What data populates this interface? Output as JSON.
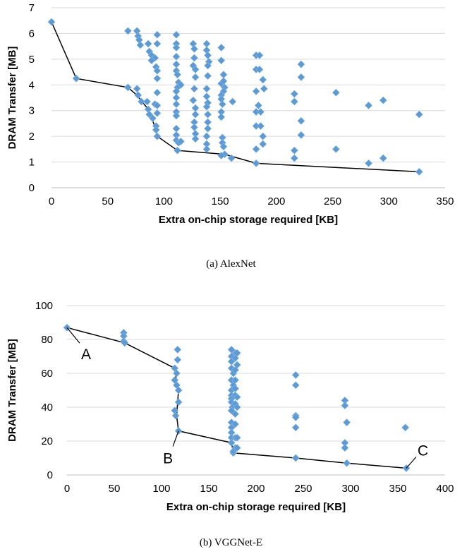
{
  "chart_data": [
    {
      "type": "scatter",
      "caption": "(a) AlexNet",
      "xlabel": "Extra on-chip storage required [KB]",
      "ylabel": "DRAM Transfer [MB]",
      "xlim": [
        0,
        350
      ],
      "ylim": [
        0,
        7
      ],
      "xticks": [
        "0",
        "50",
        "100",
        "150",
        "200",
        "250",
        "300",
        "350"
      ],
      "yticks": [
        "0",
        "1",
        "2",
        "3",
        "4",
        "5",
        "6",
        "7"
      ],
      "grid": "horizontal",
      "marker_color": "#5B9BD5",
      "points": [
        [
          0,
          6.45
        ],
        [
          22,
          4.25
        ],
        [
          68,
          6.1
        ],
        [
          76,
          6.1
        ],
        [
          77,
          5.9
        ],
        [
          78,
          5.75
        ],
        [
          79,
          5.55
        ],
        [
          86,
          5.6
        ],
        [
          87,
          5.3
        ],
        [
          89,
          5.15
        ],
        [
          92,
          5.05
        ],
        [
          94,
          5.6
        ],
        [
          94,
          5.95
        ],
        [
          93,
          4.7
        ],
        [
          94,
          4.55
        ],
        [
          94,
          4.25
        ],
        [
          89,
          4.95
        ],
        [
          68,
          3.9
        ],
        [
          76,
          3.85
        ],
        [
          77,
          3.6
        ],
        [
          80,
          3.35
        ],
        [
          85,
          3.35
        ],
        [
          86,
          3.05
        ],
        [
          87,
          2.85
        ],
        [
          90,
          2.7
        ],
        [
          92,
          3.25
        ],
        [
          94,
          3.7
        ],
        [
          94,
          3.2
        ],
        [
          94,
          2.9
        ],
        [
          93,
          2.4
        ],
        [
          93,
          2.25
        ],
        [
          94,
          2.0
        ],
        [
          111,
          5.95
        ],
        [
          111,
          5.6
        ],
        [
          111,
          5.45
        ],
        [
          111,
          5.1
        ],
        [
          111,
          4.8
        ],
        [
          111,
          4.55
        ],
        [
          112,
          4.4
        ],
        [
          113,
          4.1
        ],
        [
          112,
          3.9
        ],
        [
          111,
          3.75
        ],
        [
          111,
          3.5
        ],
        [
          111,
          3.25
        ],
        [
          111,
          2.95
        ],
        [
          111,
          2.8
        ],
        [
          111,
          2.3
        ],
        [
          111,
          2.05
        ],
        [
          111,
          1.85
        ],
        [
          112,
          1.45
        ],
        [
          113,
          1.75
        ],
        [
          115,
          4.0
        ],
        [
          115,
          1.8
        ],
        [
          126,
          5.6
        ],
        [
          127,
          5.4
        ],
        [
          127,
          5.05
        ],
        [
          126,
          4.75
        ],
        [
          128,
          4.6
        ],
        [
          128,
          4.3
        ],
        [
          127,
          3.85
        ],
        [
          126,
          3.4
        ],
        [
          128,
          3.1
        ],
        [
          128,
          2.85
        ],
        [
          127,
          2.55
        ],
        [
          127,
          2.35
        ],
        [
          128,
          2.1
        ],
        [
          128,
          1.9
        ],
        [
          138,
          5.6
        ],
        [
          138,
          5.35
        ],
        [
          139,
          5.15
        ],
        [
          140,
          4.9
        ],
        [
          139,
          4.75
        ],
        [
          139,
          4.35
        ],
        [
          138,
          3.85
        ],
        [
          138,
          3.55
        ],
        [
          139,
          3.3
        ],
        [
          138,
          3.15
        ],
        [
          139,
          2.85
        ],
        [
          139,
          2.55
        ],
        [
          139,
          2.3
        ],
        [
          138,
          2.0
        ],
        [
          138,
          1.7
        ],
        [
          138,
          1.5
        ],
        [
          151,
          5.45
        ],
        [
          151,
          4.95
        ],
        [
          153,
          4.4
        ],
        [
          151,
          4.05
        ],
        [
          153,
          4.15
        ],
        [
          154,
          3.9
        ],
        [
          153,
          3.75
        ],
        [
          151,
          3.6
        ],
        [
          151,
          3.45
        ],
        [
          152,
          3.25
        ],
        [
          151,
          2.95
        ],
        [
          151,
          2.75
        ],
        [
          152,
          1.95
        ],
        [
          152,
          1.75
        ],
        [
          153,
          1.6
        ],
        [
          154,
          1.3
        ],
        [
          151,
          1.25
        ],
        [
          160,
          1.15
        ],
        [
          161,
          3.35
        ],
        [
          182,
          5.15
        ],
        [
          185,
          5.15
        ],
        [
          182,
          4.6
        ],
        [
          185,
          4.6
        ],
        [
          188,
          4.2
        ],
        [
          182,
          3.75
        ],
        [
          189,
          3.85
        ],
        [
          184,
          3.2
        ],
        [
          182,
          2.95
        ],
        [
          186,
          2.95
        ],
        [
          182,
          2.4
        ],
        [
          186,
          2.4
        ],
        [
          188,
          2.0
        ],
        [
          188,
          1.7
        ],
        [
          182,
          1.5
        ],
        [
          182,
          0.95
        ],
        [
          216,
          3.65
        ],
        [
          216,
          3.35
        ],
        [
          216,
          1.45
        ],
        [
          216,
          1.15
        ],
        [
          222,
          4.8
        ],
        [
          222,
          4.3
        ],
        [
          222,
          2.6
        ],
        [
          222,
          2.05
        ],
        [
          253,
          3.7
        ],
        [
          253,
          1.5
        ],
        [
          282,
          3.2
        ],
        [
          282,
          0.95
        ],
        [
          295,
          3.4
        ],
        [
          295,
          1.15
        ],
        [
          327,
          2.85
        ],
        [
          327,
          0.62
        ]
      ],
      "frontier": [
        [
          0,
          6.45
        ],
        [
          22,
          4.25
        ],
        [
          68,
          3.9
        ],
        [
          76,
          3.6
        ],
        [
          86,
          3.05
        ],
        [
          93,
          2.25
        ],
        [
          94,
          2.0
        ],
        [
          112,
          1.45
        ],
        [
          154,
          1.3
        ],
        [
          182,
          0.95
        ],
        [
          327,
          0.62
        ]
      ]
    },
    {
      "type": "scatter",
      "caption": "(b) VGGNet-E",
      "xlabel": "Extra on-chip storage required [KB]",
      "ylabel": "DRAM Transfer [MB]",
      "xlim": [
        0,
        400
      ],
      "ylim": [
        0,
        100
      ],
      "xticks": [
        "0",
        "50",
        "100",
        "150",
        "200",
        "250",
        "300",
        "350",
        "400"
      ],
      "yticks": [
        "0",
        "20",
        "40",
        "60",
        "80",
        "100"
      ],
      "grid": "horizontal",
      "marker_color": "#5B9BD5",
      "points": [
        [
          0,
          87
        ],
        [
          60,
          84
        ],
        [
          60,
          82
        ],
        [
          60,
          79
        ],
        [
          61,
          78
        ],
        [
          114,
          63
        ],
        [
          116,
          60
        ],
        [
          117,
          74
        ],
        [
          117,
          68
        ],
        [
          114,
          56
        ],
        [
          116,
          53
        ],
        [
          118,
          50
        ],
        [
          118,
          43
        ],
        [
          114,
          38
        ],
        [
          115,
          35
        ],
        [
          118,
          26
        ],
        [
          174,
          74
        ],
        [
          174,
          70
        ],
        [
          174,
          67
        ],
        [
          174,
          63
        ],
        [
          176,
          60
        ],
        [
          174,
          56
        ],
        [
          176,
          53
        ],
        [
          174,
          50
        ],
        [
          174,
          47
        ],
        [
          174,
          45
        ],
        [
          174,
          43
        ],
        [
          175,
          40
        ],
        [
          174,
          38
        ],
        [
          174,
          31
        ],
        [
          174,
          28
        ],
        [
          174,
          25
        ],
        [
          174,
          22
        ],
        [
          174,
          19
        ],
        [
          176,
          13
        ],
        [
          176,
          14
        ],
        [
          178,
          72
        ],
        [
          178,
          69
        ],
        [
          178,
          62
        ],
        [
          178,
          56
        ],
        [
          178,
          51
        ],
        [
          178,
          47
        ],
        [
          178,
          42
        ],
        [
          178,
          36
        ],
        [
          178,
          30
        ],
        [
          178,
          22
        ],
        [
          178,
          16
        ],
        [
          180,
          72
        ],
        [
          180,
          65
        ],
        [
          180,
          46
        ],
        [
          180,
          40
        ],
        [
          180,
          22
        ],
        [
          180,
          16
        ],
        [
          242,
          59
        ],
        [
          242,
          53
        ],
        [
          242,
          35
        ],
        [
          242,
          34
        ],
        [
          242,
          28
        ],
        [
          242,
          10
        ],
        [
          294,
          44
        ],
        [
          294,
          41
        ],
        [
          294,
          19
        ],
        [
          294,
          16
        ],
        [
          296,
          31
        ],
        [
          296,
          7
        ],
        [
          358,
          28
        ],
        [
          359,
          4
        ]
      ],
      "frontier": [
        [
          0,
          87
        ],
        [
          61,
          78
        ],
        [
          114,
          63
        ],
        [
          116,
          55
        ],
        [
          118,
          50
        ],
        [
          116,
          35
        ],
        [
          118,
          26
        ],
        [
          174,
          19
        ],
        [
          176,
          13
        ],
        [
          242,
          10
        ],
        [
          296,
          7
        ],
        [
          359,
          4
        ]
      ],
      "annotations": [
        {
          "text": "A",
          "x": 0,
          "y": 87
        },
        {
          "text": "B",
          "x": 118,
          "y": 26
        },
        {
          "text": "C",
          "x": 359,
          "y": 4
        }
      ]
    }
  ]
}
